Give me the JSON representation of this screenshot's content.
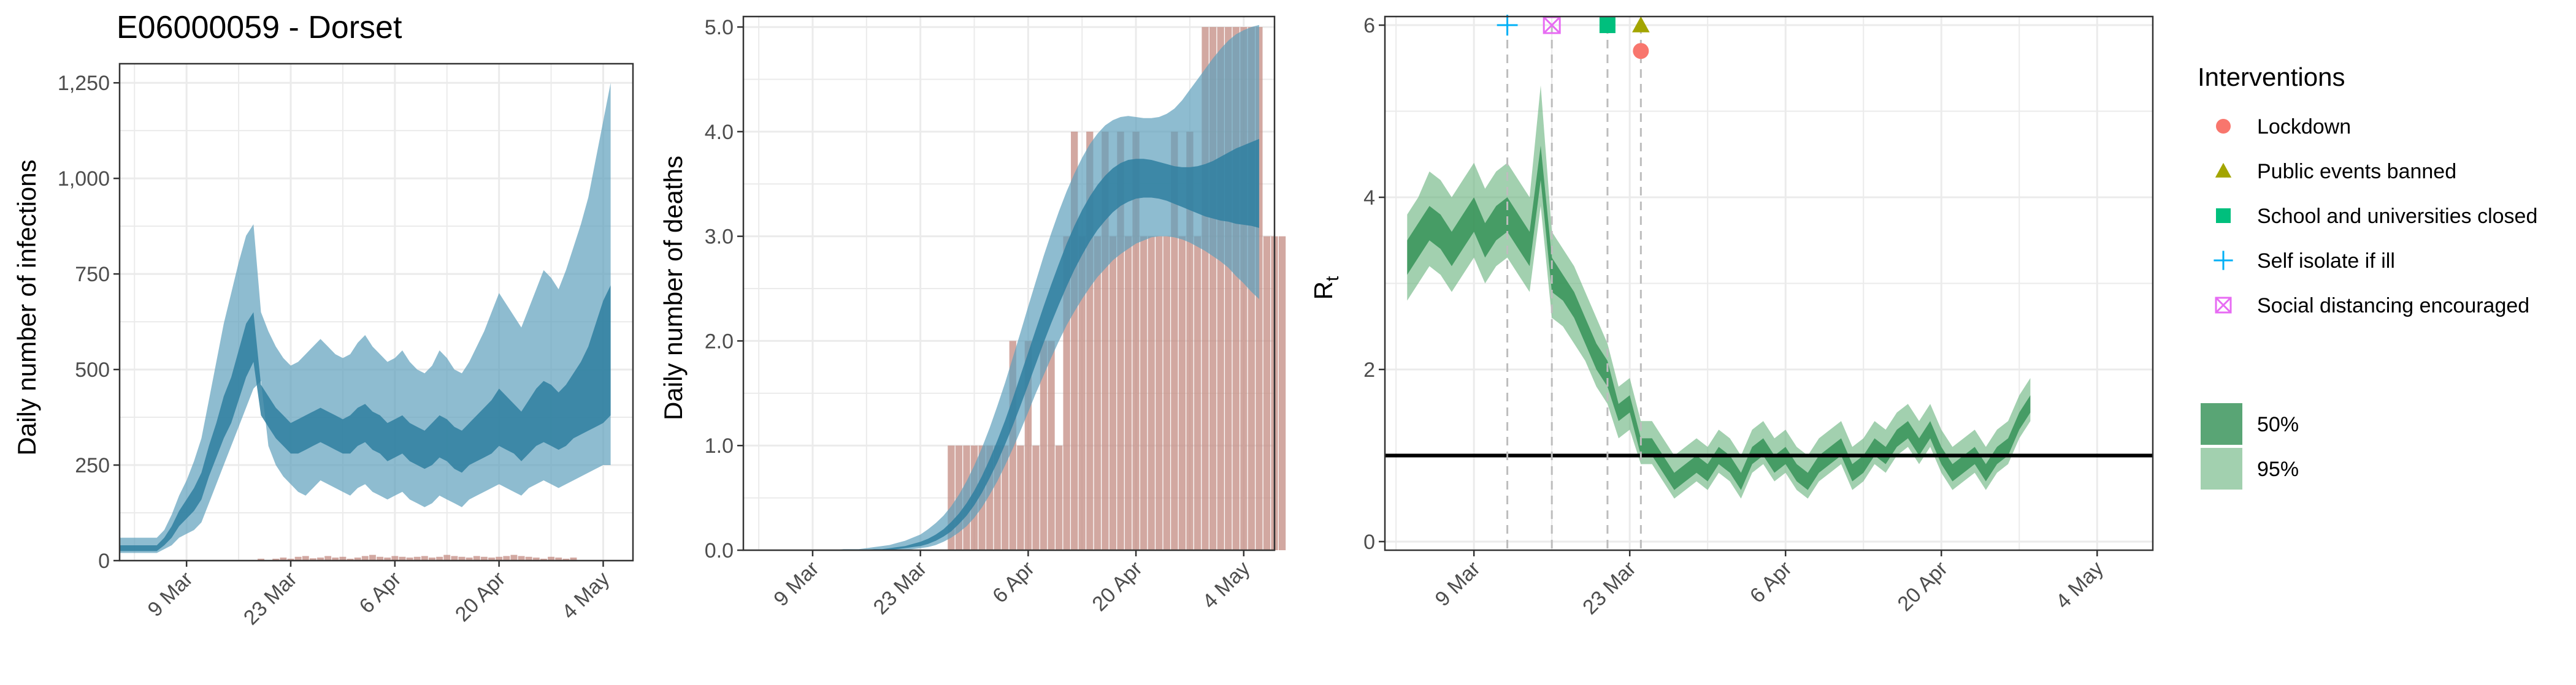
{
  "colors": {
    "infection_band_95": "#5e9fbc",
    "infection_band_50": "#2f7fa0",
    "bars": "#c38b82",
    "rt_band_95": "#64b07a",
    "rt_band_50": "#2f8f52",
    "rt_threshold": "#000000",
    "gridlines": "#ebebeb",
    "lockdown": "#f8766d",
    "public_events": "#a3a500",
    "schools": "#00bf7d",
    "self_isolate": "#00b0f6",
    "social_distancing": "#e76bf3"
  },
  "chart_data": [
    {
      "id": "infections",
      "type": "area",
      "title": "E06000059 - Dorset",
      "xlabel": "",
      "ylabel": "Daily number of infections",
      "x_start": "2020-02-29",
      "x_end": "2020-05-08",
      "x_ticks": [
        "9 Mar",
        "23 Mar",
        "6 Apr",
        "20 Apr",
        "4 May"
      ],
      "x_tick_dates": [
        "2020-03-09",
        "2020-03-23",
        "2020-04-06",
        "2020-04-20",
        "2020-05-04"
      ],
      "ylim": [
        0,
        1300
      ],
      "y_ticks": [
        0,
        250,
        500,
        750,
        1000,
        1250
      ],
      "y_tick_labels": [
        "0",
        "250",
        "500",
        "750",
        "1,000",
        "1,250"
      ],
      "grid": true,
      "band_start": "2020-02-29",
      "band_95_low": [
        20,
        20,
        20,
        20,
        20,
        20,
        30,
        40,
        60,
        70,
        80,
        100,
        150,
        200,
        250,
        300,
        350,
        400,
        450,
        470,
        300,
        250,
        220,
        200,
        180,
        170,
        190,
        210,
        200,
        190,
        180,
        170,
        190,
        200,
        180,
        170,
        160,
        170,
        180,
        160,
        150,
        140,
        150,
        170,
        160,
        150,
        140,
        160,
        170,
        180,
        190,
        200,
        190,
        180,
        170,
        190,
        200,
        210,
        200,
        190,
        200,
        210,
        220,
        230,
        240,
        250,
        250
      ],
      "band_50_low": [
        25,
        25,
        25,
        25,
        25,
        25,
        40,
        60,
        90,
        110,
        130,
        160,
        220,
        270,
        320,
        360,
        420,
        480,
        520,
        380,
        350,
        320,
        300,
        280,
        280,
        290,
        300,
        310,
        300,
        290,
        280,
        280,
        300,
        310,
        290,
        280,
        260,
        270,
        280,
        260,
        250,
        240,
        250,
        270,
        260,
        240,
        230,
        250,
        260,
        270,
        280,
        300,
        290,
        280,
        260,
        280,
        300,
        310,
        300,
        290,
        300,
        320,
        330,
        340,
        350,
        360,
        380
      ],
      "band_50_high": [
        40,
        40,
        40,
        40,
        40,
        40,
        60,
        90,
        130,
        160,
        190,
        230,
        300,
        360,
        430,
        480,
        550,
        620,
        650,
        460,
        430,
        400,
        380,
        360,
        370,
        380,
        390,
        400,
        390,
        380,
        370,
        380,
        400,
        410,
        390,
        380,
        360,
        370,
        380,
        360,
        350,
        340,
        360,
        380,
        370,
        350,
        340,
        360,
        380,
        400,
        420,
        450,
        430,
        410,
        390,
        420,
        450,
        470,
        460,
        440,
        460,
        490,
        520,
        560,
        620,
        680,
        720
      ],
      "band_95_high": [
        60,
        60,
        60,
        60,
        60,
        60,
        80,
        120,
        170,
        210,
        260,
        320,
        420,
        520,
        620,
        700,
        780,
        850,
        880,
        650,
        600,
        560,
        530,
        510,
        520,
        540,
        560,
        580,
        560,
        540,
        530,
        540,
        570,
        590,
        560,
        540,
        520,
        530,
        550,
        520,
        500,
        490,
        510,
        550,
        530,
        500,
        490,
        520,
        560,
        600,
        650,
        700,
        670,
        640,
        610,
        660,
        710,
        760,
        740,
        710,
        760,
        820,
        880,
        950,
        1050,
        1150,
        1250
      ],
      "bar_start": "2020-02-29",
      "bar_values": [
        0,
        0,
        0,
        0,
        0,
        0,
        0,
        0,
        0,
        0,
        0,
        0,
        0,
        0,
        0,
        0,
        0,
        0,
        0,
        5,
        0,
        5,
        8,
        5,
        10,
        12,
        6,
        8,
        12,
        8,
        10,
        5,
        8,
        12,
        15,
        10,
        8,
        12,
        10,
        8,
        10,
        12,
        8,
        10,
        15,
        12,
        10,
        8,
        12,
        10,
        8,
        10,
        12,
        15,
        12,
        10,
        8,
        5,
        10,
        8,
        5,
        8,
        0,
        0,
        0,
        0,
        0
      ]
    },
    {
      "id": "deaths",
      "type": "area",
      "title": "",
      "xlabel": "",
      "ylabel": "Daily number of deaths",
      "x_start": "2020-02-29",
      "x_end": "2020-05-08",
      "x_ticks": [
        "9 Mar",
        "23 Mar",
        "6 Apr",
        "20 Apr",
        "4 May"
      ],
      "x_tick_dates": [
        "2020-03-09",
        "2020-03-23",
        "2020-04-06",
        "2020-04-20",
        "2020-05-04"
      ],
      "ylim": [
        0,
        5.1
      ],
      "y_ticks": [
        0,
        1,
        2,
        3,
        4,
        5
      ],
      "y_tick_labels": [
        "0.0",
        "1.0",
        "2.0",
        "3.0",
        "4.0",
        "5.0"
      ],
      "grid": true,
      "band_start": "2020-03-09",
      "band_95_low": [
        0,
        0,
        0,
        0,
        0,
        0,
        0,
        0,
        0,
        0,
        0,
        0,
        0,
        0.01,
        0.02,
        0.03,
        0.05,
        0.08,
        0.12,
        0.17,
        0.23,
        0.31,
        0.41,
        0.53,
        0.66,
        0.81,
        0.97,
        1.14,
        1.32,
        1.5,
        1.67,
        1.84,
        2.0,
        2.15,
        2.28,
        2.4,
        2.51,
        2.61,
        2.69,
        2.77,
        2.83,
        2.88,
        2.93,
        2.96,
        2.99,
        3.0,
        3.0,
        2.99,
        2.97,
        2.94,
        2.9,
        2.86,
        2.81,
        2.76,
        2.7,
        2.62,
        2.55,
        2.47,
        2.4
      ],
      "band_50_low": [
        0,
        0,
        0,
        0,
        0,
        0,
        0,
        0,
        0,
        0,
        0,
        0.01,
        0.02,
        0.03,
        0.04,
        0.06,
        0.09,
        0.13,
        0.18,
        0.25,
        0.33,
        0.43,
        0.55,
        0.69,
        0.84,
        1.01,
        1.19,
        1.38,
        1.58,
        1.78,
        1.98,
        2.17,
        2.35,
        2.52,
        2.68,
        2.82,
        2.95,
        3.06,
        3.15,
        3.23,
        3.29,
        3.33,
        3.36,
        3.37,
        3.37,
        3.36,
        3.34,
        3.31,
        3.28,
        3.25,
        3.22,
        3.19,
        3.17,
        3.15,
        3.14,
        3.12,
        3.11,
        3.1,
        3.08
      ],
      "band_50_high": [
        0,
        0,
        0,
        0,
        0,
        0,
        0,
        0,
        0.01,
        0.01,
        0.02,
        0.03,
        0.04,
        0.06,
        0.08,
        0.11,
        0.15,
        0.2,
        0.27,
        0.35,
        0.45,
        0.57,
        0.71,
        0.87,
        1.05,
        1.24,
        1.45,
        1.67,
        1.89,
        2.11,
        2.33,
        2.54,
        2.74,
        2.93,
        3.1,
        3.25,
        3.38,
        3.49,
        3.58,
        3.65,
        3.7,
        3.73,
        3.74,
        3.74,
        3.73,
        3.71,
        3.69,
        3.67,
        3.66,
        3.66,
        3.67,
        3.69,
        3.72,
        3.76,
        3.8,
        3.84,
        3.87,
        3.9,
        3.93
      ],
      "band_95_high": [
        0,
        0,
        0,
        0,
        0.01,
        0.01,
        0.01,
        0.02,
        0.03,
        0.04,
        0.05,
        0.07,
        0.09,
        0.12,
        0.15,
        0.2,
        0.26,
        0.33,
        0.42,
        0.53,
        0.66,
        0.81,
        0.98,
        1.17,
        1.38,
        1.6,
        1.84,
        2.08,
        2.33,
        2.57,
        2.81,
        3.03,
        3.24,
        3.43,
        3.6,
        3.75,
        3.88,
        3.98,
        4.06,
        4.11,
        4.14,
        4.15,
        4.14,
        4.13,
        4.13,
        4.14,
        4.17,
        4.22,
        4.3,
        4.4,
        4.5,
        4.6,
        4.7,
        4.79,
        4.87,
        4.93,
        4.97,
        5.0,
        5.02
      ],
      "bar_start": "2020-03-27",
      "bar_values": [
        1,
        1,
        1,
        1,
        1,
        1,
        1,
        1,
        2,
        1,
        2,
        1,
        2,
        2,
        1,
        3,
        4,
        3,
        4,
        3,
        4,
        3,
        4,
        3,
        4,
        3,
        3,
        3,
        3,
        4,
        3,
        4,
        3,
        5,
        5,
        5,
        5,
        5,
        5,
        5,
        5,
        3,
        3,
        3
      ]
    },
    {
      "id": "rt",
      "type": "area",
      "title": "",
      "xlabel": "",
      "ylabel": "R",
      "ylabel_subscript": "t",
      "x_start": "2020-03-01",
      "x_end": "2020-05-09",
      "x_ticks": [
        "9 Mar",
        "23 Mar",
        "6 Apr",
        "20 Apr",
        "4 May"
      ],
      "x_tick_dates": [
        "2020-03-09",
        "2020-03-23",
        "2020-04-06",
        "2020-04-20",
        "2020-05-04"
      ],
      "ylim": [
        -0.1,
        6.1
      ],
      "y_ticks": [
        0,
        2,
        4,
        6
      ],
      "y_tick_labels": [
        "0",
        "2",
        "4",
        "6"
      ],
      "grid": true,
      "threshold": 1,
      "band_start": "2020-03-03",
      "band_95_low": [
        2.8,
        3.0,
        3.2,
        3.1,
        2.9,
        3.1,
        3.3,
        3.0,
        3.2,
        3.3,
        3.1,
        2.9,
        3.9,
        2.6,
        2.5,
        2.3,
        2.1,
        1.8,
        1.6,
        1.2,
        1.3,
        0.9,
        0.9,
        0.7,
        0.5,
        0.6,
        0.7,
        0.6,
        0.8,
        0.7,
        0.5,
        0.8,
        0.9,
        0.7,
        0.8,
        0.6,
        0.5,
        0.7,
        0.8,
        0.9,
        0.6,
        0.7,
        0.9,
        0.8,
        1.0,
        1.1,
        0.9,
        1.1,
        0.8,
        0.6,
        0.7,
        0.8,
        0.6,
        0.8,
        0.9,
        1.2,
        1.4
      ],
      "band_50_low": [
        3.1,
        3.3,
        3.5,
        3.4,
        3.2,
        3.4,
        3.6,
        3.3,
        3.5,
        3.6,
        3.4,
        3.2,
        4.2,
        2.9,
        2.8,
        2.6,
        2.3,
        2.0,
        1.8,
        1.4,
        1.5,
        1.0,
        1.0,
        0.8,
        0.6,
        0.7,
        0.8,
        0.7,
        0.9,
        0.8,
        0.6,
        0.9,
        1.0,
        0.8,
        0.9,
        0.7,
        0.6,
        0.8,
        0.9,
        1.0,
        0.7,
        0.8,
        1.0,
        0.9,
        1.1,
        1.2,
        1.0,
        1.2,
        0.9,
        0.7,
        0.8,
        0.9,
        0.7,
        0.9,
        1.0,
        1.3,
        1.5
      ],
      "band_50_high": [
        3.5,
        3.7,
        3.9,
        3.8,
        3.6,
        3.8,
        4.0,
        3.7,
        3.9,
        4.0,
        3.8,
        3.6,
        4.6,
        3.3,
        3.1,
        2.9,
        2.6,
        2.3,
        2.1,
        1.6,
        1.7,
        1.2,
        1.2,
        1.0,
        0.8,
        0.9,
        1.0,
        0.9,
        1.1,
        1.0,
        0.8,
        1.1,
        1.2,
        1.0,
        1.1,
        0.9,
        0.8,
        1.0,
        1.1,
        1.2,
        0.9,
        1.0,
        1.2,
        1.1,
        1.3,
        1.4,
        1.2,
        1.4,
        1.1,
        0.9,
        1.0,
        1.1,
        0.9,
        1.1,
        1.2,
        1.5,
        1.7
      ],
      "band_95_high": [
        3.8,
        4.0,
        4.3,
        4.2,
        4.0,
        4.2,
        4.4,
        4.1,
        4.3,
        4.4,
        4.2,
        4.0,
        5.3,
        3.6,
        3.4,
        3.2,
        2.9,
        2.6,
        2.3,
        1.8,
        1.9,
        1.4,
        1.4,
        1.2,
        1.0,
        1.1,
        1.2,
        1.1,
        1.3,
        1.2,
        1.0,
        1.3,
        1.4,
        1.2,
        1.3,
        1.1,
        1.0,
        1.2,
        1.3,
        1.4,
        1.1,
        1.2,
        1.4,
        1.3,
        1.5,
        1.6,
        1.4,
        1.6,
        1.3,
        1.1,
        1.2,
        1.3,
        1.1,
        1.3,
        1.4,
        1.7,
        1.9
      ],
      "interventions": [
        {
          "name": "Self isolate if ill",
          "date": "2020-03-12",
          "value": 6.0,
          "symbol": "plus",
          "color_key": "self_isolate"
        },
        {
          "name": "Social distancing encouraged",
          "date": "2020-03-16",
          "value": 6.0,
          "symbol": "square-x",
          "color_key": "social_distancing"
        },
        {
          "name": "School and universities closed",
          "date": "2020-03-21",
          "value": 6.0,
          "symbol": "square",
          "color_key": "schools"
        },
        {
          "name": "Public events banned",
          "date": "2020-03-24",
          "value": 6.0,
          "symbol": "triangle",
          "color_key": "public_events"
        },
        {
          "name": "Lockdown",
          "date": "2020-03-24",
          "value": 5.7,
          "symbol": "circle",
          "color_key": "lockdown"
        }
      ]
    }
  ],
  "legend": {
    "interventions_title": "Interventions",
    "interventions": [
      {
        "label": "Lockdown",
        "symbol": "circle",
        "color_key": "lockdown"
      },
      {
        "label": "Public events banned",
        "symbol": "triangle",
        "color_key": "public_events"
      },
      {
        "label": "School and universities closed",
        "symbol": "square",
        "color_key": "schools"
      },
      {
        "label": "Self isolate if ill",
        "symbol": "plus",
        "color_key": "self_isolate"
      },
      {
        "label": "Social distancing encouraged",
        "symbol": "square-x",
        "color_key": "social_distancing"
      }
    ],
    "bands": [
      {
        "label": "50%",
        "color_key": "rt_band_50"
      },
      {
        "label": "95%",
        "color_key": "rt_band_95"
      }
    ]
  }
}
